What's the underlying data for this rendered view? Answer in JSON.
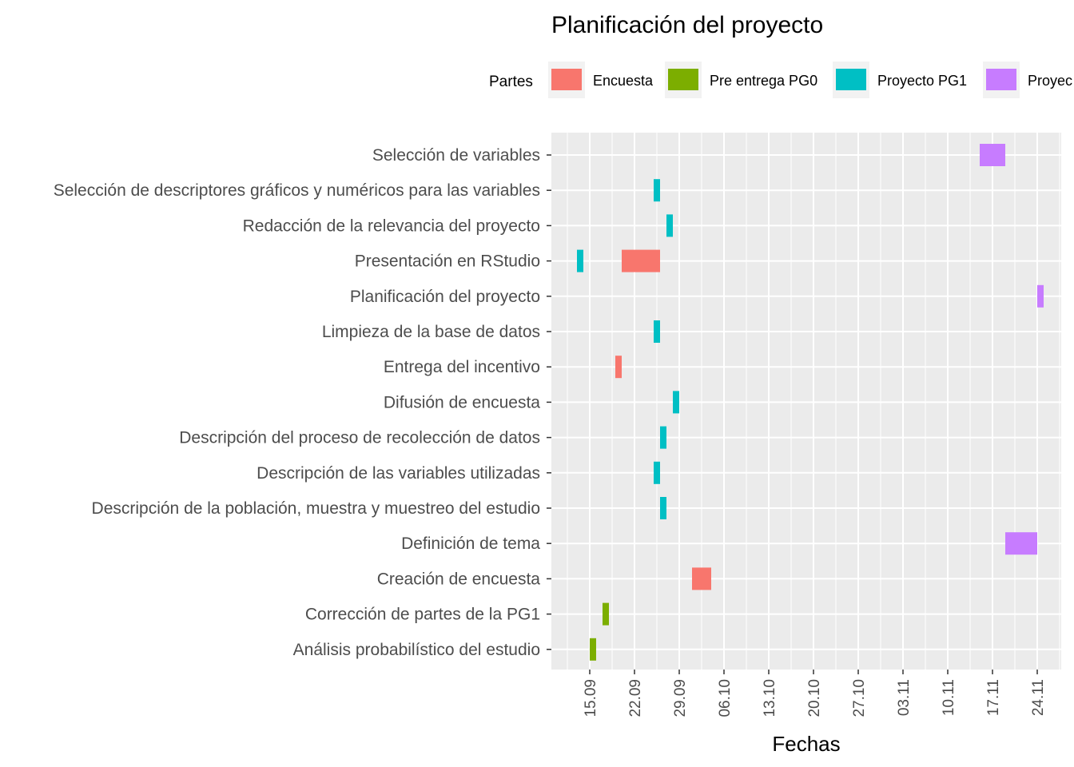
{
  "chart_data": {
    "type": "gantt",
    "title": "Planificación del proyecto",
    "xlabel": "Fechas",
    "ylabel": "",
    "legend": {
      "title": "Partes",
      "position": "top",
      "entries": [
        "Encuesta",
        "Pre entrega PG0",
        "Proyecto PG1",
        "Proyec"
      ]
    },
    "series_colors": {
      "Encuesta": "#F8766D",
      "Pre entrega PG0": "#7CAE00",
      "Proyecto PG1": "#00BFC4",
      "Proyec": "#C77CFF"
    },
    "x_ticks": [
      "15.09",
      "22.09",
      "29.09",
      "06.10",
      "13.10",
      "20.10",
      "27.10",
      "03.11",
      "10.11",
      "17.11",
      "24.11"
    ],
    "x_range": [
      "2023-09-09",
      "2023-11-26"
    ],
    "grid": true,
    "categories": [
      "Selección de variables",
      "Selección de descriptores gráficos y numéricos para las variables",
      "Redacción de la relevancia del proyecto",
      "Presentación en RStudio",
      "Planificación del proyecto",
      "Limpieza de la base de datos",
      "Entrega del incentivo",
      "Difusión de encuesta",
      "Descripción del proceso de recolección de datos",
      "Descripción de las variables utilizadas",
      "Descripción de la población, muestra y muestreo del estudio",
      "Definición de tema",
      "Creación de encuesta",
      "Corrección de partes de la PG1",
      "Análisis probabilístico del estudio"
    ],
    "tasks": [
      {
        "task": "Selección de variables",
        "part": "Proyec",
        "start": "2023-11-15",
        "end": "2023-11-19"
      },
      {
        "task": "Selección de descriptores gráficos y numéricos para las variables",
        "part": "Proyecto PG1",
        "start": "2023-09-25",
        "end": "2023-09-26"
      },
      {
        "task": "Redacción de la relevancia del proyecto",
        "part": "Proyecto PG1",
        "start": "2023-09-27",
        "end": "2023-09-28"
      },
      {
        "task": "Presentación en RStudio",
        "part": "Proyecto PG1",
        "start": "2023-09-13",
        "end": "2023-09-14"
      },
      {
        "task": "Presentación en RStudio",
        "part": "Encuesta",
        "start": "2023-09-20",
        "end": "2023-09-26"
      },
      {
        "task": "Planificación del proyecto",
        "part": "Proyec",
        "start": "2023-11-24",
        "end": "2023-11-25"
      },
      {
        "task": "Limpieza de la base de datos",
        "part": "Proyecto PG1",
        "start": "2023-09-25",
        "end": "2023-09-26"
      },
      {
        "task": "Entrega del incentivo",
        "part": "Encuesta",
        "start": "2023-09-19",
        "end": "2023-09-20"
      },
      {
        "task": "Difusión de encuesta",
        "part": "Proyecto PG1",
        "start": "2023-09-28",
        "end": "2023-09-29"
      },
      {
        "task": "Descripción del proceso de recolección de datos",
        "part": "Proyecto PG1",
        "start": "2023-09-26",
        "end": "2023-09-27"
      },
      {
        "task": "Descripción de las variables utilizadas",
        "part": "Proyecto PG1",
        "start": "2023-09-25",
        "end": "2023-09-26"
      },
      {
        "task": "Descripción de la población, muestra y muestreo del estudio",
        "part": "Proyecto PG1",
        "start": "2023-09-26",
        "end": "2023-09-27"
      },
      {
        "task": "Definición de tema",
        "part": "Proyec",
        "start": "2023-11-19",
        "end": "2023-11-24"
      },
      {
        "task": "Creación de encuesta",
        "part": "Encuesta",
        "start": "2023-10-01",
        "end": "2023-10-04"
      },
      {
        "task": "Corrección de partes de la PG1",
        "part": "Pre entrega PG0",
        "start": "2023-09-17",
        "end": "2023-09-18"
      },
      {
        "task": "Análisis probabilístico del estudio",
        "part": "Pre entrega PG0",
        "start": "2023-09-15",
        "end": "2023-09-16"
      }
    ]
  }
}
